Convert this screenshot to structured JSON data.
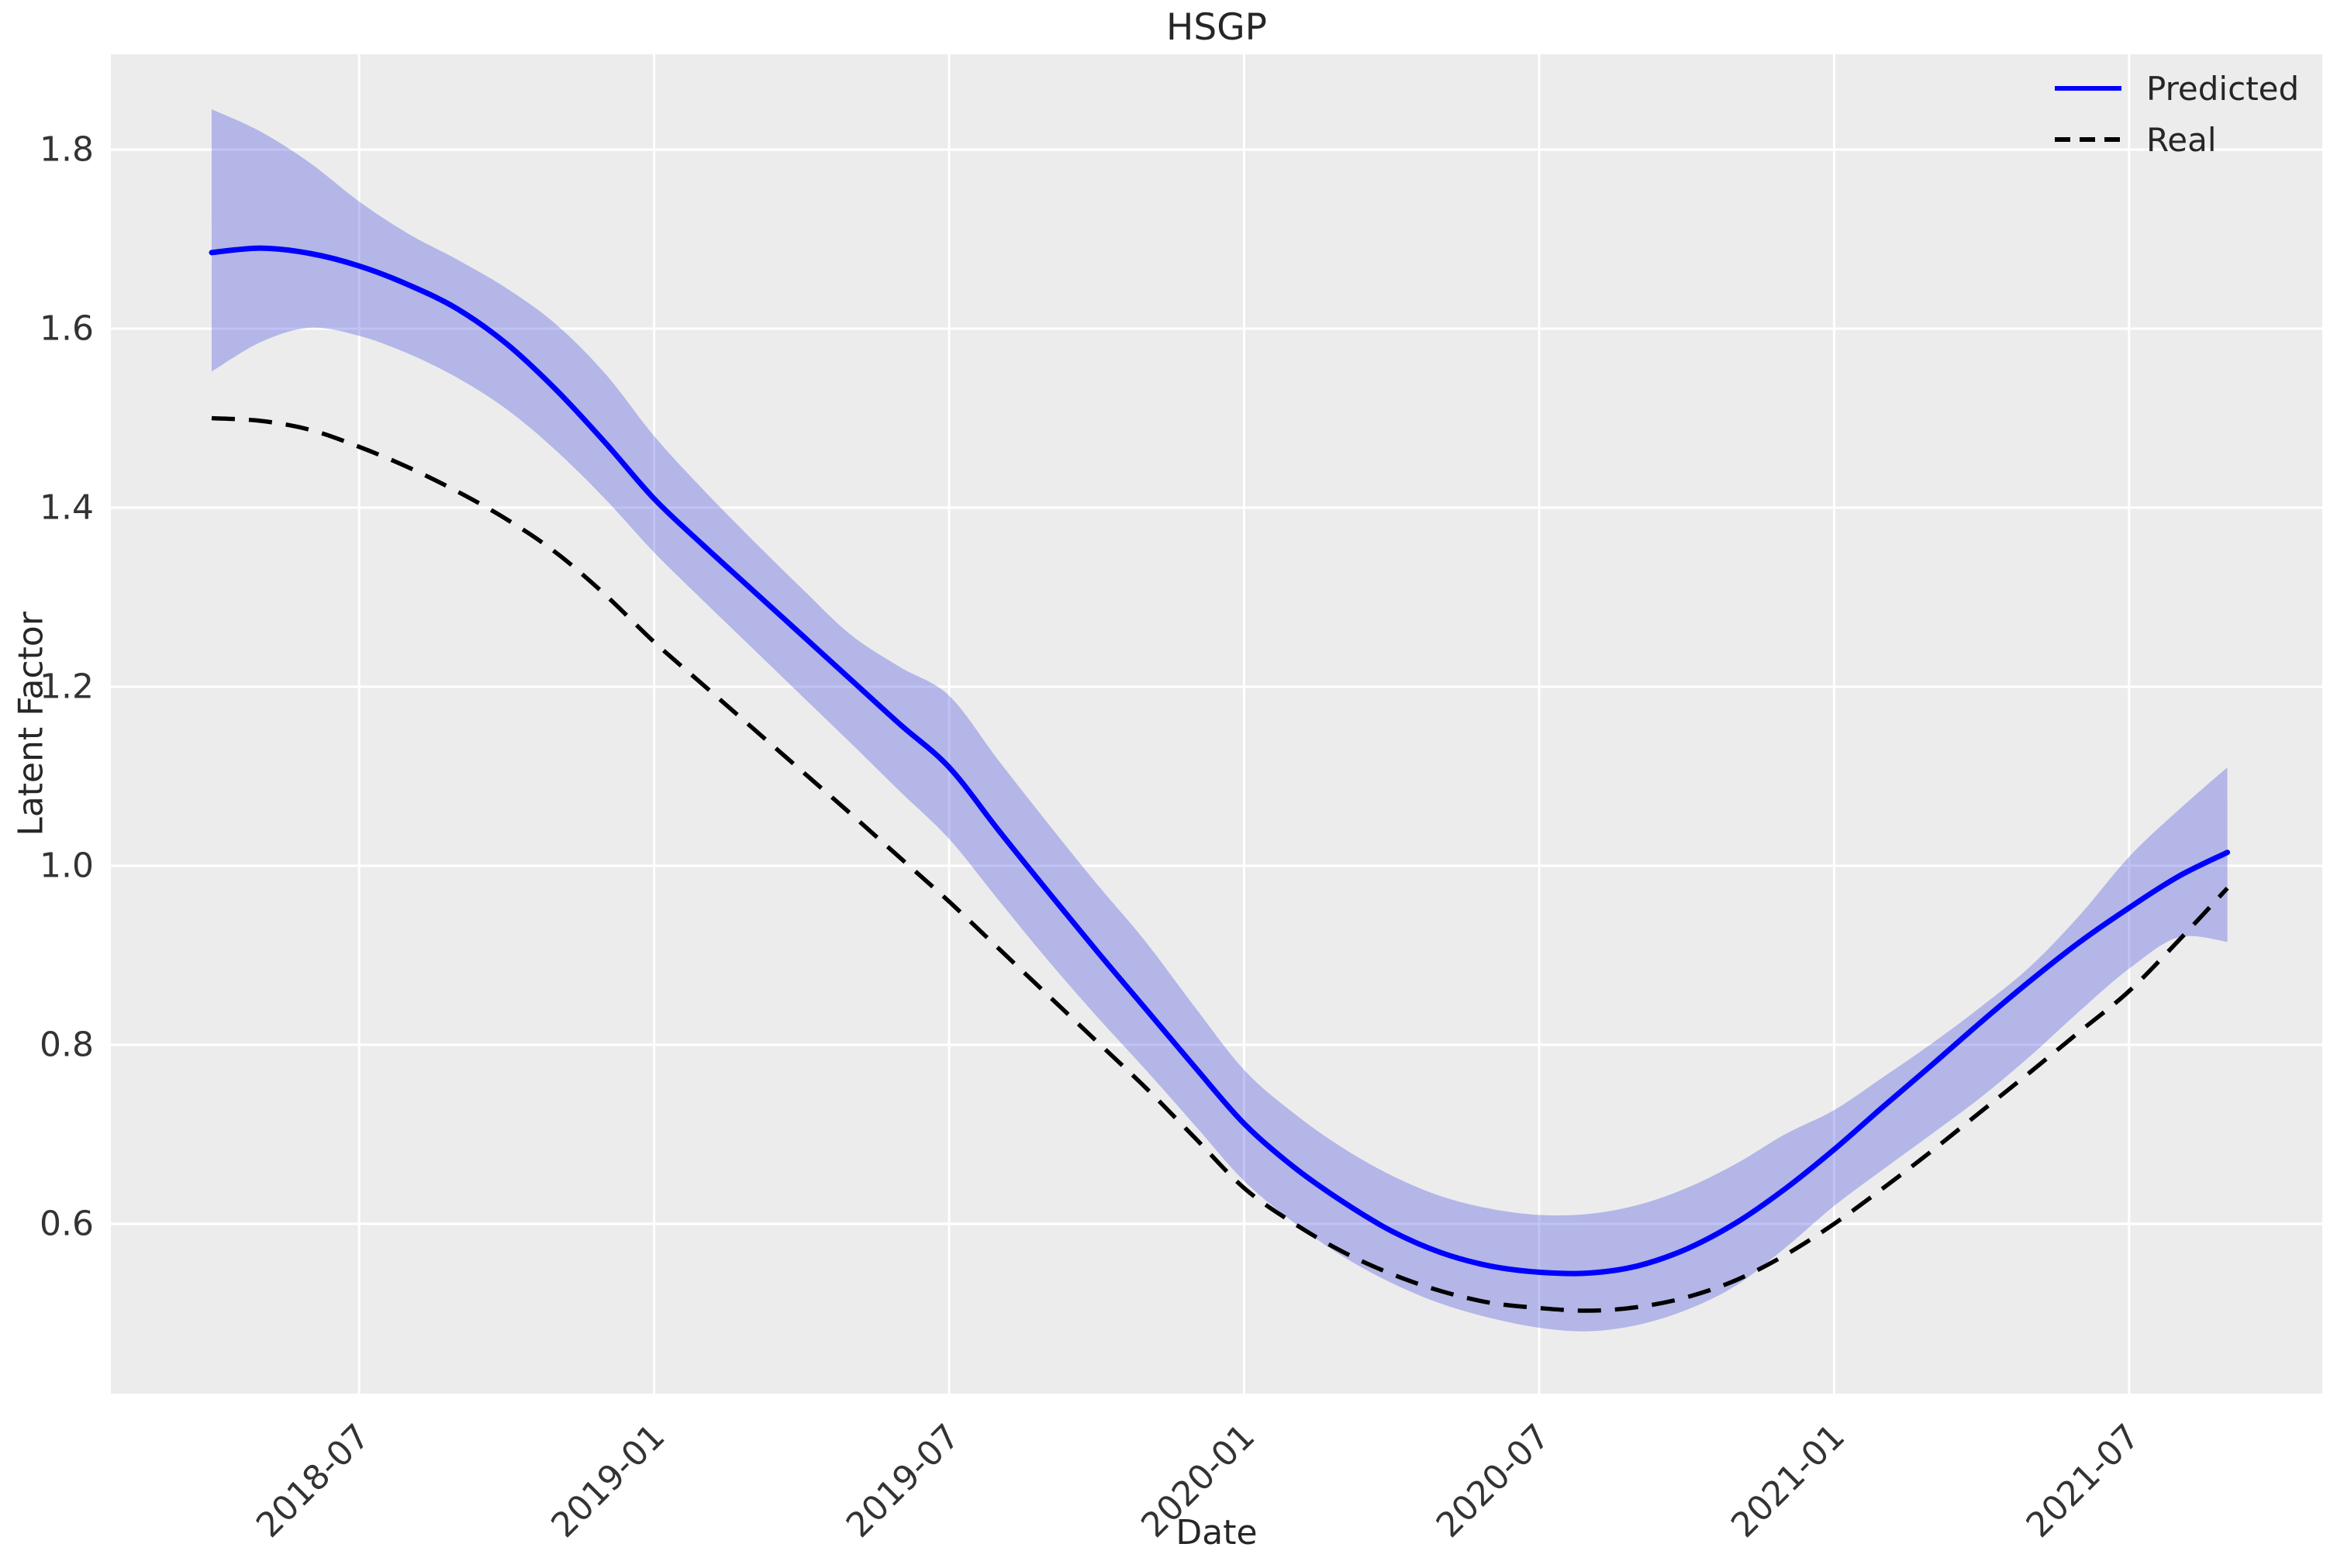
{
  "chart_data": {
    "type": "line",
    "title": "HSGP",
    "xlabel": "Date",
    "ylabel": "Latent Factor",
    "grid": true,
    "legend_position": "upper right",
    "background": {
      "figure": "#ffffff",
      "axes": "#ececec",
      "grid": "#ffffff"
    },
    "x": [
      "2018-04",
      "2018-05",
      "2018-06",
      "2018-07",
      "2018-08",
      "2018-09",
      "2018-10",
      "2018-11",
      "2018-12",
      "2019-01",
      "2019-02",
      "2019-03",
      "2019-04",
      "2019-05",
      "2019-06",
      "2019-07",
      "2019-08",
      "2019-09",
      "2019-10",
      "2019-11",
      "2019-12",
      "2020-01",
      "2020-02",
      "2020-03",
      "2020-04",
      "2020-05",
      "2020-06",
      "2020-07",
      "2020-08",
      "2020-09",
      "2020-10",
      "2020-11",
      "2020-12",
      "2021-01",
      "2021-02",
      "2021-03",
      "2021-04",
      "2021-05",
      "2021-06",
      "2021-07",
      "2021-08",
      "2021-09"
    ],
    "series": [
      {
        "name": "Predicted",
        "style": "solid",
        "color": "#0000ff",
        "values": [
          1.685,
          1.69,
          1.684,
          1.67,
          1.649,
          1.622,
          1.583,
          1.532,
          1.473,
          1.41,
          1.358,
          1.308,
          1.258,
          1.208,
          1.158,
          1.11,
          1.04,
          0.972,
          0.905,
          0.84,
          0.775,
          0.712,
          0.664,
          0.625,
          0.592,
          0.568,
          0.553,
          0.546,
          0.545,
          0.553,
          0.572,
          0.601,
          0.639,
          0.683,
          0.731,
          0.778,
          0.826,
          0.872,
          0.915,
          0.953,
          0.988,
          1.015
        ]
      },
      {
        "name": "Real",
        "style": "dashed",
        "color": "#000000",
        "values": [
          1.5,
          1.497,
          1.487,
          1.468,
          1.445,
          1.418,
          1.387,
          1.35,
          1.303,
          1.25,
          1.202,
          1.154,
          1.106,
          1.058,
          1.009,
          0.96,
          0.908,
          0.856,
          0.804,
          0.752,
          0.696,
          0.64,
          0.601,
          0.569,
          0.544,
          0.525,
          0.512,
          0.506,
          0.503,
          0.507,
          0.518,
          0.537,
          0.565,
          0.6,
          0.64,
          0.682,
          0.726,
          0.77,
          0.815,
          0.86,
          0.916,
          0.975
        ]
      }
    ],
    "band": {
      "series": "Predicted",
      "color": "rgba(45,55,220,0.30)",
      "lower": [
        1.552,
        1.585,
        1.601,
        1.592,
        1.572,
        1.545,
        1.51,
        1.464,
        1.41,
        1.35,
        1.296,
        1.243,
        1.19,
        1.137,
        1.083,
        1.03,
        0.962,
        0.895,
        0.832,
        0.772,
        0.71,
        0.648,
        0.602,
        0.564,
        0.534,
        0.511,
        0.495,
        0.484,
        0.48,
        0.487,
        0.504,
        0.531,
        0.573,
        0.62,
        0.661,
        0.701,
        0.742,
        0.788,
        0.838,
        0.885,
        0.92,
        0.915
      ],
      "upper": [
        1.845,
        1.82,
        1.785,
        1.742,
        1.706,
        1.677,
        1.645,
        1.605,
        1.55,
        1.48,
        1.42,
        1.364,
        1.31,
        1.258,
        1.222,
        1.19,
        1.118,
        1.048,
        0.98,
        0.915,
        0.842,
        0.772,
        0.724,
        0.685,
        0.654,
        0.631,
        0.617,
        0.61,
        0.611,
        0.621,
        0.64,
        0.667,
        0.7,
        0.727,
        0.764,
        0.802,
        0.843,
        0.888,
        0.945,
        1.01,
        1.062,
        1.11
      ]
    },
    "x_ticks": [
      {
        "label": "2018-07",
        "index": 3
      },
      {
        "label": "2019-01",
        "index": 9
      },
      {
        "label": "2019-07",
        "index": 15
      },
      {
        "label": "2020-01",
        "index": 21
      },
      {
        "label": "2020-07",
        "index": 27
      },
      {
        "label": "2021-01",
        "index": 33
      },
      {
        "label": "2021-07",
        "index": 39
      }
    ],
    "y_ticks": [
      "1.8",
      "1.6",
      "1.4",
      "1.2",
      "1.0",
      "0.8",
      "0.6"
    ],
    "ylim": [
      0.4104,
      1.9065
    ],
    "xlim_index": [
      -2.05,
      42.93
    ]
  }
}
